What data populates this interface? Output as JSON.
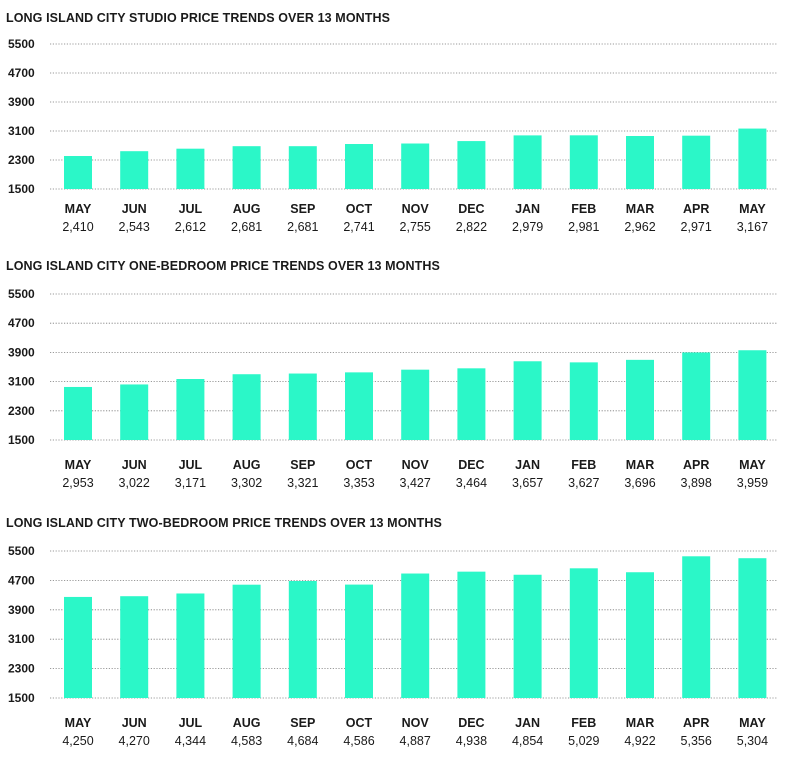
{
  "colors": {
    "bar": "#2bf7c8",
    "grid": "#7a7a7a",
    "text": "#1a1a1a"
  },
  "chart_data": [
    {
      "type": "bar",
      "title": "LONG ISLAND CITY STUDIO PRICE TRENDS OVER 13 MONTHS",
      "categories": [
        "MAY",
        "JUN",
        "JUL",
        "AUG",
        "SEP",
        "OCT",
        "NOV",
        "DEC",
        "JAN",
        "FEB",
        "MAR",
        "APR",
        "MAY"
      ],
      "values": [
        2410,
        2543,
        2612,
        2681,
        2681,
        2741,
        2755,
        2822,
        2979,
        2981,
        2962,
        2971,
        3167
      ],
      "value_labels": [
        "2,410",
        "2,543",
        "2,612",
        "2,681",
        "2,681",
        "2,741",
        "2,755",
        "2,822",
        "2,979",
        "2,981",
        "2,962",
        "2,971",
        "3,167"
      ],
      "yticks": [
        5500,
        4700,
        3900,
        3100,
        2300,
        1500
      ],
      "ylim": [
        1500,
        5500
      ],
      "grid": true
    },
    {
      "type": "bar",
      "title": "LONG ISLAND CITY ONE-BEDROOM PRICE TRENDS OVER 13 MONTHS",
      "categories": [
        "MAY",
        "JUN",
        "JUL",
        "AUG",
        "SEP",
        "OCT",
        "NOV",
        "DEC",
        "JAN",
        "FEB",
        "MAR",
        "APR",
        "MAY"
      ],
      "values": [
        2953,
        3022,
        3171,
        3302,
        3321,
        3353,
        3427,
        3464,
        3657,
        3627,
        3696,
        3898,
        3959
      ],
      "value_labels": [
        "2,953",
        "3,022",
        "3,171",
        "3,302",
        "3,321",
        "3,353",
        "3,427",
        "3,464",
        "3,657",
        "3,627",
        "3,696",
        "3,898",
        "3,959"
      ],
      "yticks": [
        5500,
        4700,
        3900,
        3100,
        2300,
        1500
      ],
      "ylim": [
        1500,
        5500
      ],
      "grid": true
    },
    {
      "type": "bar",
      "title": "LONG ISLAND CITY TWO-BEDROOM PRICE TRENDS OVER 13 MONTHS",
      "categories": [
        "MAY",
        "JUN",
        "JUL",
        "AUG",
        "SEP",
        "OCT",
        "NOV",
        "DEC",
        "JAN",
        "FEB",
        "MAR",
        "APR",
        "MAY"
      ],
      "values": [
        4250,
        4270,
        4344,
        4583,
        4684,
        4586,
        4887,
        4938,
        4854,
        5029,
        4922,
        5356,
        5304
      ],
      "value_labels": [
        "4,250",
        "4,270",
        "4,344",
        "4,583",
        "4,684",
        "4,586",
        "4,887",
        "4,938",
        "4,854",
        "5,029",
        "4,922",
        "5,356",
        "5,304"
      ],
      "yticks": [
        5500,
        4700,
        3900,
        3100,
        2300,
        1500
      ],
      "ylim": [
        1500,
        5500
      ],
      "grid": true
    }
  ]
}
